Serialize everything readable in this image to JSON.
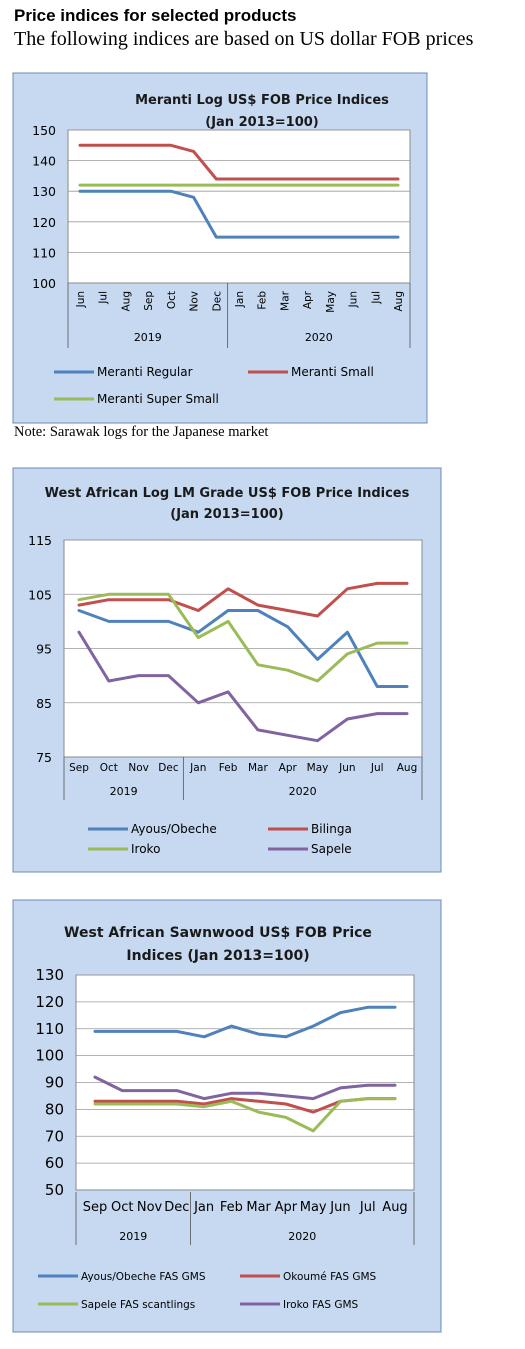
{
  "header": {
    "title": "Price indices for selected products",
    "subtitle": "The following indices are based on US dollar FOB prices"
  },
  "note": "Note: Sarawak logs for the Japanese market",
  "chart_data": [
    {
      "type": "line",
      "title": [
        "Meranti Log US$ FOB Price Indices",
        "(Jan 2013=100)"
      ],
      "categories": [
        "Jun",
        "Jul",
        "Aug",
        "Sep",
        "Oct",
        "Nov",
        "Dec",
        "Jan",
        "Feb",
        "Mar",
        "Apr",
        "May",
        "Jun",
        "Jul",
        "Aug"
      ],
      "years": [
        {
          "label": "2019",
          "from": 0,
          "to": 6
        },
        {
          "label": "2020",
          "from": 7,
          "to": 14
        }
      ],
      "ylim": [
        100,
        150
      ],
      "yticks": [
        100,
        110,
        120,
        130,
        140,
        150
      ],
      "legend_columns": 2,
      "series": [
        {
          "name": "Meranti Regular",
          "color": "#4f81bd",
          "values": [
            130,
            130,
            130,
            130,
            130,
            128,
            115,
            115,
            115,
            115,
            115,
            115,
            115,
            115,
            115
          ]
        },
        {
          "name": "Meranti Small",
          "color": "#c0504d",
          "values": [
            145,
            145,
            145,
            145,
            145,
            143,
            134,
            134,
            134,
            134,
            134,
            134,
            134,
            134,
            134
          ]
        },
        {
          "name": "Meranti Super Small",
          "color": "#9bbb59",
          "values": [
            132,
            132,
            132,
            132,
            132,
            132,
            132,
            132,
            132,
            132,
            132,
            132,
            132,
            132,
            132
          ]
        }
      ]
    },
    {
      "type": "line",
      "title": [
        "West African Log LM Grade US$ FOB Price Indices",
        "(Jan 2013=100)"
      ],
      "categories": [
        "Sep",
        "Oct",
        "Nov",
        "Dec",
        "Jan",
        "Feb",
        "Mar",
        "Apr",
        "May",
        "Jun",
        "Jul",
        "Aug"
      ],
      "years": [
        {
          "label": "2019",
          "from": 0,
          "to": 3
        },
        {
          "label": "2020",
          "from": 4,
          "to": 11
        }
      ],
      "ylim": [
        75,
        115
      ],
      "yticks": [
        75,
        85,
        95,
        105,
        115
      ],
      "legend_columns": 2,
      "series": [
        {
          "name": "Ayous/Obeche",
          "color": "#4f81bd",
          "values": [
            102,
            100,
            100,
            100,
            98,
            102,
            102,
            99,
            93,
            98,
            88,
            88
          ]
        },
        {
          "name": "Bilinga",
          "color": "#c0504d",
          "values": [
            103,
            104,
            104,
            104,
            102,
            106,
            103,
            102,
            101,
            106,
            107,
            107
          ]
        },
        {
          "name": "Iroko",
          "color": "#9bbb59",
          "values": [
            104,
            105,
            105,
            105,
            97,
            100,
            92,
            91,
            89,
            94,
            96,
            96
          ]
        },
        {
          "name": "Sapele",
          "color": "#8064a2",
          "values": [
            98,
            89,
            90,
            90,
            85,
            87,
            80,
            79,
            78,
            82,
            83,
            83
          ]
        }
      ]
    },
    {
      "type": "line",
      "title": [
        "West African Sawnwood US$ FOB Price",
        "Indices (Jan 2013=100)"
      ],
      "categories": [
        "Sep",
        "Oct",
        "Nov",
        "Dec",
        "Jan",
        "Feb",
        "Mar",
        "Apr",
        "May",
        "Jun",
        "Jul",
        "Aug"
      ],
      "years": [
        {
          "label": "2019",
          "from": 0,
          "to": 3
        },
        {
          "label": "2020",
          "from": 4,
          "to": 11
        }
      ],
      "ylim": [
        50,
        130
      ],
      "yticks": [
        50,
        60,
        70,
        80,
        90,
        100,
        110,
        120,
        130
      ],
      "legend_columns": 2,
      "series": [
        {
          "name": "Ayous/Obeche FAS GMS",
          "color": "#4f81bd",
          "values": [
            109,
            109,
            109,
            109,
            107,
            111,
            108,
            107,
            111,
            116,
            118,
            118
          ]
        },
        {
          "name": "Okoumé FAS GMS",
          "color": "#c0504d",
          "values": [
            83,
            83,
            83,
            83,
            82,
            84,
            83,
            82,
            79,
            83,
            84,
            84
          ]
        },
        {
          "name": "Sapele FAS scantlings",
          "color": "#9bbb59",
          "values": [
            82,
            82,
            82,
            82,
            81,
            83,
            79,
            77,
            72,
            83,
            84,
            84
          ]
        },
        {
          "name": "Iroko FAS GMS",
          "color": "#8064a2",
          "values": [
            92,
            87,
            87,
            87,
            84,
            86,
            86,
            85,
            84,
            88,
            89,
            89
          ]
        }
      ]
    }
  ]
}
